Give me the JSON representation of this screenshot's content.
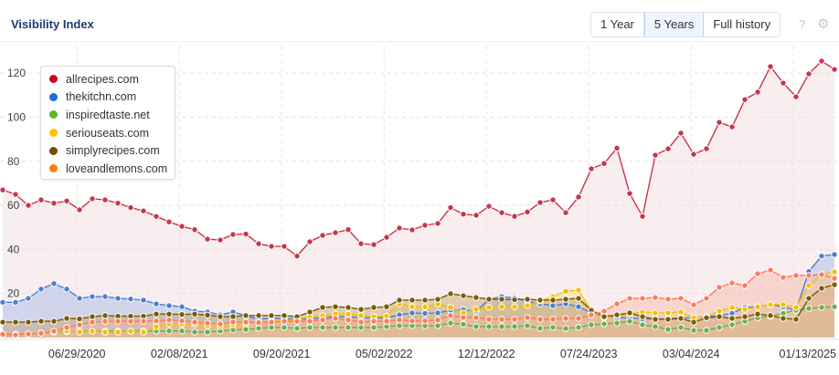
{
  "header": {
    "title": "Visibility Index",
    "buttons": [
      "1 Year",
      "5 Years",
      "Full history"
    ],
    "active_button": "5 Years",
    "help_icon": "?",
    "settings_icon": "gear-icon"
  },
  "chart_data": {
    "type": "area",
    "title": "Visibility Index",
    "xlabel": "",
    "ylabel": "",
    "ylim": [
      0,
      135
    ],
    "y_ticks": [
      20,
      40,
      60,
      80,
      100,
      120
    ],
    "x_note": "4-week sampling from Jan 2020 to Mar 2025",
    "x_ticks": [
      {
        "label": "06/29/2020",
        "index": 5.8
      },
      {
        "label": "02/08/2021",
        "index": 13.8
      },
      {
        "label": "09/20/2021",
        "index": 21.8
      },
      {
        "label": "05/02/2022",
        "index": 29.8
      },
      {
        "label": "12/12/2022",
        "index": 37.8
      },
      {
        "label": "07/24/2023",
        "index": 45.8
      },
      {
        "label": "03/04/2024",
        "index": 53.8
      },
      {
        "label": "01/13/2025",
        "index": 61.8
      }
    ],
    "grid": true,
    "legend_position": "top-left",
    "series": [
      {
        "name": "allrecipes.com",
        "color": "#c9344c",
        "legend_color": "#d0021b",
        "fill": "#f0dadd",
        "values": [
          67,
          65,
          60,
          62.5,
          61,
          62,
          58,
          63,
          62.5,
          61,
          59,
          57.5,
          55,
          52.5,
          50.5,
          49,
          44.7,
          44.3,
          46.8,
          47,
          42.6,
          41.4,
          41.4,
          37,
          43.5,
          46.4,
          47.6,
          49,
          42.6,
          42.2,
          45.5,
          49.7,
          48.9,
          51,
          51.8,
          59,
          56,
          55.5,
          59.6,
          56.7,
          55,
          57,
          61.3,
          62.5,
          56.7,
          63.8,
          76.6,
          79,
          86,
          65.4,
          55,
          82.8,
          85.7,
          92.8,
          83.2,
          85.7,
          97.7,
          95.6,
          108,
          111.4,
          123,
          115.5,
          109.3,
          119.7,
          125.5,
          121.7
        ]
      },
      {
        "name": "thekitchn.com",
        "color": "#4a7fd6",
        "legend_color": "#1e6fd9",
        "fill": "#9fb6e6",
        "values": [
          16,
          16,
          17.8,
          22,
          24.5,
          22,
          17.8,
          18.6,
          18.6,
          17.8,
          17.5,
          17,
          15.3,
          14.5,
          14,
          12,
          11.6,
          10.3,
          11.6,
          10,
          8.3,
          9,
          8.5,
          8.5,
          8.5,
          9,
          9.5,
          9.5,
          9,
          9,
          9,
          10.3,
          11.2,
          11,
          11.2,
          12.4,
          12.6,
          12,
          17.4,
          18.6,
          18,
          16.6,
          15.3,
          14.5,
          15.3,
          14,
          11.2,
          10,
          9,
          9,
          8.5,
          8.5,
          8.5,
          9,
          9,
          9.5,
          10,
          11,
          13.7,
          14,
          15,
          14,
          12.4,
          30,
          37,
          37.7
        ]
      },
      {
        "name": "inspiredtaste.net",
        "color": "#6ab04c",
        "legend_color": "#5cb82a",
        "fill": "#b7d9a4",
        "values": [
          1.5,
          1.5,
          1.6,
          2,
          2.5,
          2.7,
          2.9,
          2.9,
          2.9,
          2.9,
          2.9,
          3,
          3,
          3,
          3,
          2.5,
          2.5,
          3,
          3.5,
          3.7,
          4.2,
          4.6,
          4.6,
          4.2,
          4.6,
          4.6,
          4.6,
          4.6,
          4.6,
          4.6,
          5,
          5.4,
          5.4,
          5.4,
          5.4,
          6.6,
          6,
          5,
          5,
          5,
          5,
          5.4,
          4.2,
          4.6,
          4.1,
          4.6,
          5.8,
          6.2,
          6.6,
          7.4,
          5.8,
          5,
          3.7,
          4.6,
          3.3,
          3.3,
          4.6,
          5.8,
          7.4,
          9,
          9.7,
          11,
          12.4,
          13.2,
          13.7,
          14
        ]
      },
      {
        "name": "seriouseats.com",
        "color": "#f5bf00",
        "legend_color": "#ffc107",
        "fill": "#f3dc8a",
        "values": [
          1.5,
          1.2,
          1.6,
          2,
          2.5,
          3,
          2.5,
          2.9,
          2.5,
          2.5,
          2.9,
          2.5,
          4.9,
          6.2,
          6.2,
          6.2,
          5.4,
          5,
          5.8,
          6.2,
          7,
          7.4,
          7.8,
          8.3,
          9.5,
          10,
          10.7,
          10.7,
          10,
          9.5,
          9.7,
          15.3,
          14,
          14,
          15.3,
          13.7,
          11.2,
          12.8,
          13.7,
          14,
          14,
          14.5,
          16.6,
          18.6,
          21,
          21.5,
          12,
          9,
          10,
          10.7,
          11.6,
          11.2,
          11.2,
          11.6,
          9,
          9.5,
          12,
          13.7,
          12.8,
          14,
          15,
          15,
          13.7,
          23.6,
          28.6,
          29.8
        ]
      },
      {
        "name": "simplyrecipes.com",
        "color": "#7a5c00",
        "legend_color": "#7b4a00",
        "fill": "#c4a066",
        "values": [
          7,
          7,
          7,
          7.4,
          7.4,
          8.7,
          8.5,
          9.5,
          10,
          9.7,
          9.7,
          9.7,
          10.7,
          10.7,
          10.5,
          10.7,
          10.2,
          9.5,
          9.5,
          10,
          10,
          10,
          10,
          9.5,
          11.6,
          13.7,
          14,
          13.7,
          12.8,
          13.7,
          14,
          17,
          17,
          17,
          17.4,
          19.9,
          19,
          18.2,
          17.4,
          17.4,
          17.2,
          17.4,
          17,
          17,
          17.4,
          17.8,
          12.4,
          9.5,
          10.3,
          11.2,
          9.5,
          8.3,
          8.3,
          8.7,
          7,
          9,
          9.5,
          8.7,
          9.5,
          10.7,
          10,
          8.7,
          8.3,
          17.8,
          22.4,
          24
        ]
      },
      {
        "name": "loveandlemons.com",
        "color": "#ff7b5c",
        "legend_color": "#ff7a1a",
        "fill": "#f7b5a3",
        "values": [
          1.5,
          1.2,
          1.6,
          2,
          2.9,
          4.6,
          5.8,
          7,
          7.4,
          7.4,
          7.4,
          7.4,
          7.6,
          8,
          7.6,
          7,
          6.6,
          6.2,
          7,
          7,
          6.8,
          7,
          7.4,
          7.4,
          7.4,
          8,
          8.7,
          8,
          7,
          7.4,
          7.4,
          8,
          7.6,
          7.6,
          8,
          10,
          9.1,
          9.1,
          8.3,
          8.3,
          8.3,
          9.1,
          8.3,
          8.3,
          8.7,
          8.7,
          10.3,
          12,
          15.3,
          17.8,
          17.8,
          18.2,
          17.4,
          17.8,
          14.9,
          17.8,
          22.8,
          24.8,
          23.6,
          29,
          30.6,
          27.3,
          28.2,
          28.2,
          28.6,
          26.9
        ]
      }
    ]
  }
}
